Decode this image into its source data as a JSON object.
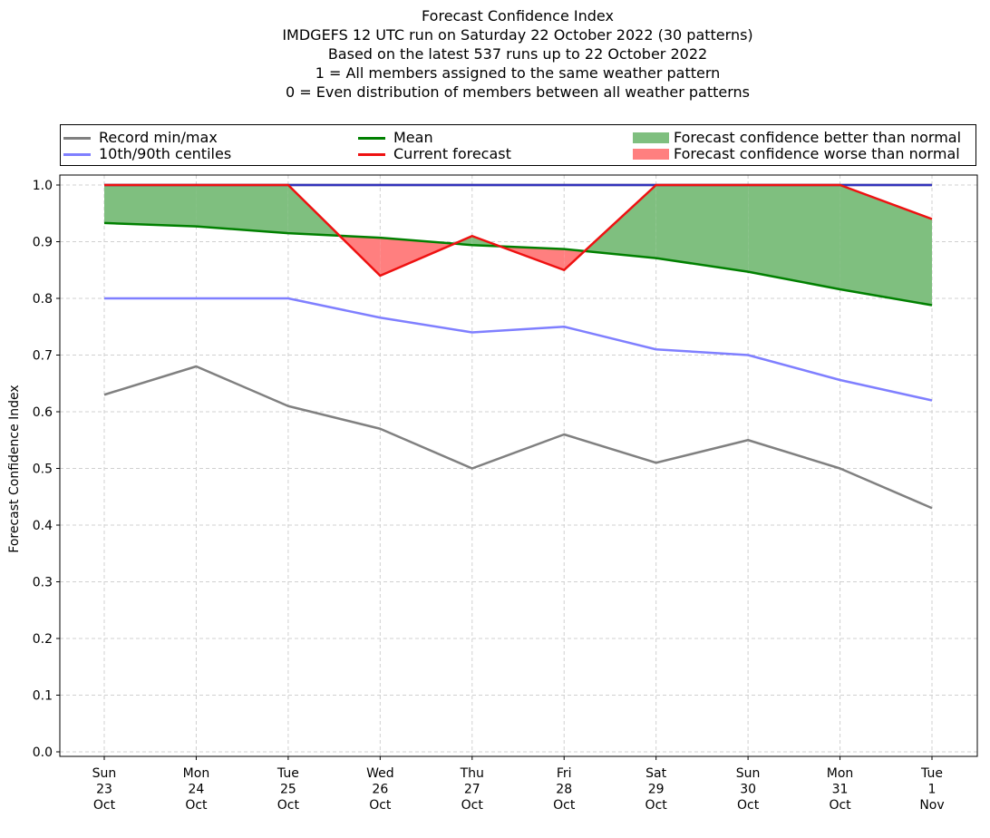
{
  "title_lines": [
    "Forecast Confidence Index",
    "IMDGEFS 12 UTC run on Saturday 22 October 2022 (30 patterns)",
    "Based on the latest 537 runs up to 22 October 2022",
    "1 = All members assigned to the same weather pattern",
    "0 = Even distribution of members between all weather patterns"
  ],
  "legend": {
    "record": "Record min/max",
    "centiles": "10th/90th centiles",
    "mean": "Mean",
    "current": "Current forecast",
    "better": "Forecast confidence better than normal",
    "worse": "Forecast confidence worse than normal"
  },
  "colors": {
    "record": "#808080",
    "centiles": "#7f7fff",
    "centiles_upper": "#3333bb",
    "mean": "#008000",
    "current": "#ee1111",
    "better": "#7fbf7f",
    "worse": "#ff7f7f"
  },
  "chart_data": {
    "type": "line",
    "ylabel": "Forecast Confidence Index",
    "ylim": [
      0.0,
      1.0
    ],
    "yticks": [
      "0.0",
      "0.1",
      "0.2",
      "0.3",
      "0.4",
      "0.5",
      "0.6",
      "0.7",
      "0.8",
      "0.9",
      "1.0"
    ],
    "categories": [
      [
        "Sun",
        "23",
        "Oct"
      ],
      [
        "Mon",
        "24",
        "Oct"
      ],
      [
        "Tue",
        "25",
        "Oct"
      ],
      [
        "Wed",
        "26",
        "Oct"
      ],
      [
        "Thu",
        "27",
        "Oct"
      ],
      [
        "Fri",
        "28",
        "Oct"
      ],
      [
        "Sat",
        "29",
        "Oct"
      ],
      [
        "Sun",
        "30",
        "Oct"
      ],
      [
        "Mon",
        "31",
        "Oct"
      ],
      [
        "Tue",
        "1",
        "Nov"
      ]
    ],
    "grid": true,
    "legend_position": "top",
    "series": [
      {
        "name": "Record min/max",
        "key": "record_max",
        "values": [
          1.0,
          1.0,
          1.0,
          1.0,
          1.0,
          1.0,
          1.0,
          1.0,
          1.0,
          1.0
        ]
      },
      {
        "name": "Record min/max",
        "key": "record_min",
        "values": [
          0.63,
          0.68,
          0.61,
          0.57,
          0.5,
          0.56,
          0.51,
          0.55,
          0.5,
          0.43
        ]
      },
      {
        "name": "10th/90th centiles",
        "key": "p90",
        "values": [
          1.0,
          1.0,
          1.0,
          1.0,
          1.0,
          1.0,
          1.0,
          1.0,
          1.0,
          1.0
        ]
      },
      {
        "name": "10th/90th centiles",
        "key": "p10",
        "values": [
          0.8,
          0.8,
          0.8,
          0.766,
          0.74,
          0.75,
          0.71,
          0.7,
          0.656,
          0.62
        ]
      },
      {
        "name": "Mean",
        "key": "mean",
        "values": [
          0.933,
          0.927,
          0.915,
          0.907,
          0.894,
          0.887,
          0.871,
          0.847,
          0.816,
          0.788
        ]
      },
      {
        "name": "Current forecast",
        "key": "current",
        "values": [
          1.0,
          1.0,
          1.0,
          0.84,
          0.91,
          0.85,
          1.0,
          1.0,
          1.0,
          0.94
        ]
      }
    ]
  }
}
